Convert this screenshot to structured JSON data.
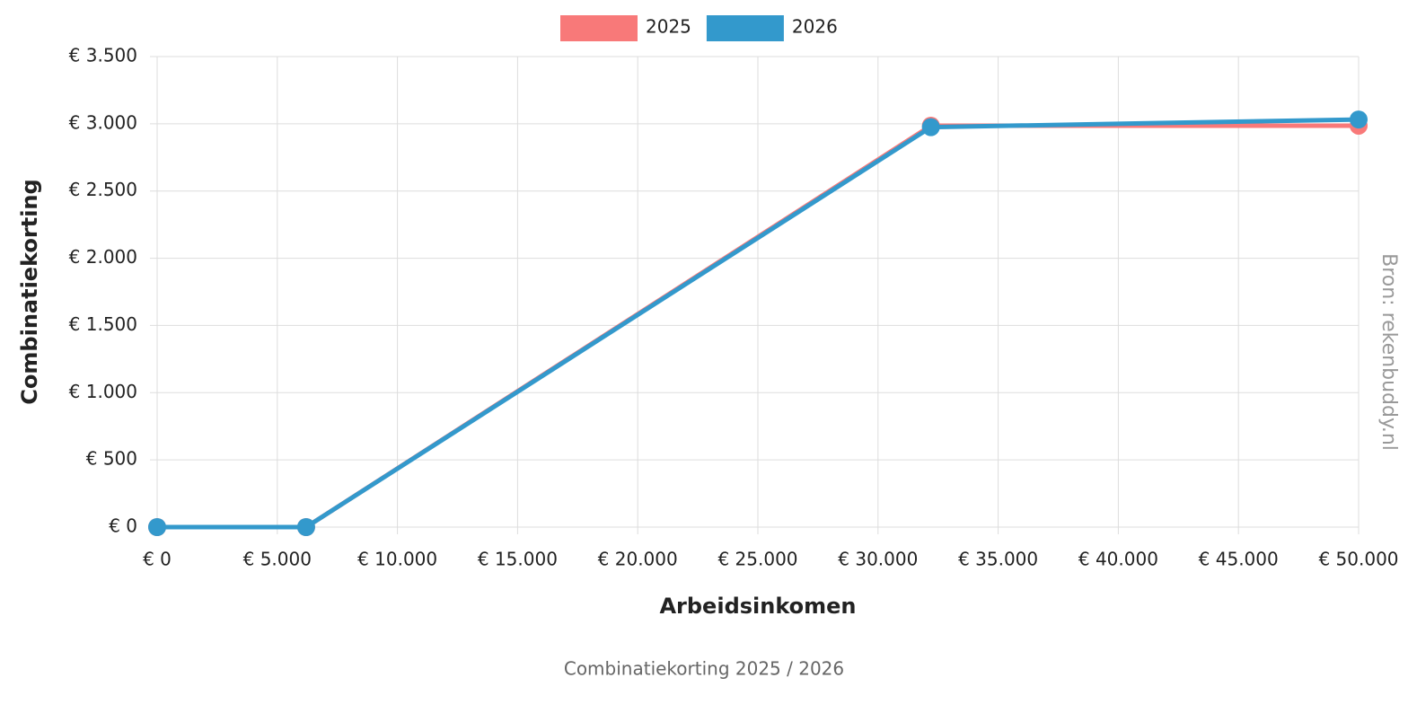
{
  "chart_data": {
    "type": "line",
    "title": "Combinatiekorting  2025 / 2026",
    "source": "Bron: rekenbuddy.nl",
    "xlabel": "Arbeidsinkomen",
    "ylabel": "Combinatiekorting",
    "x": [
      0,
      6200,
      32200,
      50000
    ],
    "series": [
      {
        "name": "2025",
        "color": "#f87979",
        "values": [
          0,
          0,
          2986,
          2986
        ]
      },
      {
        "name": "2026",
        "color": "#3399cc",
        "values": [
          0,
          0,
          2975,
          3032
        ]
      }
    ],
    "xlim": [
      0,
      50000
    ],
    "xticks": [
      {
        "value": 0,
        "label": "€ 0"
      },
      {
        "value": 5000,
        "label": "€ 5.000"
      },
      {
        "value": 10000,
        "label": "€ 10.000"
      },
      {
        "value": 15000,
        "label": "€ 15.000"
      },
      {
        "value": 20000,
        "label": "€ 20.000"
      },
      {
        "value": 25000,
        "label": "€ 25.000"
      },
      {
        "value": 30000,
        "label": "€ 30.000"
      },
      {
        "value": 35000,
        "label": "€ 35.000"
      },
      {
        "value": 40000,
        "label": "€ 40.000"
      },
      {
        "value": 45000,
        "label": "€ 45.000"
      },
      {
        "value": 50000,
        "label": "€ 50.000"
      }
    ],
    "ylim": [
      0,
      3500
    ],
    "yticks": [
      {
        "value": 0,
        "label": "€ 0"
      },
      {
        "value": 500,
        "label": "€ 500"
      },
      {
        "value": 1000,
        "label": "€ 1.000"
      },
      {
        "value": 1500,
        "label": "€ 1.500"
      },
      {
        "value": 2000,
        "label": "€ 2.000"
      },
      {
        "value": 2500,
        "label": "€ 2.500"
      },
      {
        "value": 3000,
        "label": "€ 3.000"
      },
      {
        "value": 3500,
        "label": "€ 3.500"
      }
    ],
    "grid": true,
    "legend": "top"
  }
}
